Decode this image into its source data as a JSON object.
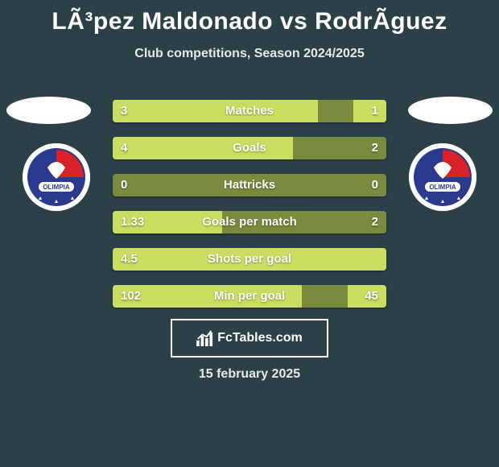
{
  "title": "LÃ³pez Maldonado vs RodrÃ­guez",
  "subtitle": "Club competitions, Season 2024/2025",
  "date": "15 february 2025",
  "footer_brand": "FcTables.com",
  "colors": {
    "background": "#2b4047",
    "bar_track": "#7a8b3e",
    "bar_fill": "#c9dd5f",
    "text": "#ffffff"
  },
  "bars": [
    {
      "label": "Matches",
      "left_val": "3",
      "right_val": "1",
      "left_pct": 75,
      "right_pct": 12
    },
    {
      "label": "Goals",
      "left_val": "4",
      "right_val": "2",
      "left_pct": 66,
      "right_pct": 0
    },
    {
      "label": "Hattricks",
      "left_val": "0",
      "right_val": "0",
      "left_pct": 0,
      "right_pct": 0
    },
    {
      "label": "Goals per match",
      "left_val": "1.33",
      "right_val": "2",
      "left_pct": 40,
      "right_pct": 0
    },
    {
      "label": "Shots per goal",
      "left_val": "4.5",
      "right_val": "",
      "left_pct": 100,
      "right_pct": 0
    },
    {
      "label": "Min per goal",
      "left_val": "102",
      "right_val": "45",
      "left_pct": 69,
      "right_pct": 14
    }
  ]
}
